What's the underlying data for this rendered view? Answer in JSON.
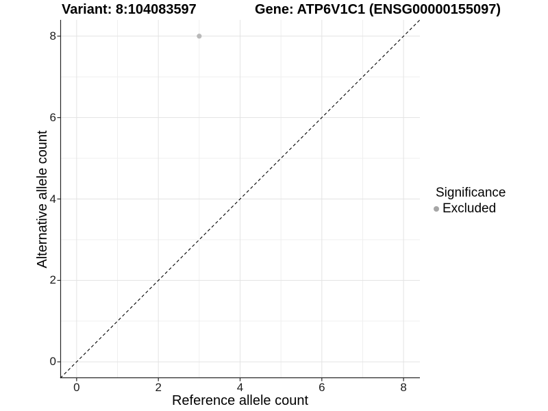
{
  "chart_data": {
    "type": "scatter",
    "title_left": "Variant: 8:104083597",
    "title_right": "Gene: ATP6V1C1 (ENSG00000155097)",
    "xlabel": "Reference allele count",
    "ylabel": "Alternative allele count",
    "xlim": [
      -0.4,
      8.4
    ],
    "ylim": [
      -0.4,
      8.4
    ],
    "xticks": [
      0,
      2,
      4,
      6,
      8
    ],
    "yticks": [
      0,
      2,
      4,
      6,
      8
    ],
    "x_minor_ticks": [
      1,
      3,
      5,
      7
    ],
    "y_minor_ticks": [
      1,
      3,
      5,
      7
    ],
    "grid": true,
    "legend_position": "right",
    "identity_line": {
      "from": [
        -0.4,
        -0.4
      ],
      "to": [
        8.4,
        8.4
      ],
      "style": "dashed",
      "color": "#000000",
      "width": 1.1,
      "dash": "4.5 3.5"
    },
    "series": [
      {
        "name": "Excluded",
        "marker": "circle",
        "color": "#b9b9b9",
        "radius": 3.6,
        "points": [
          [
            3,
            8
          ]
        ]
      }
    ],
    "legend": {
      "title": "Significance",
      "entries": [
        {
          "label": "Excluded",
          "color": "#a6a6a6"
        }
      ]
    },
    "colors": {
      "grid_major": "#e3e3e3",
      "grid_minor": "#efefef",
      "axis_line": "#262626",
      "tick_mark": "#262626",
      "background": "#ffffff"
    }
  }
}
